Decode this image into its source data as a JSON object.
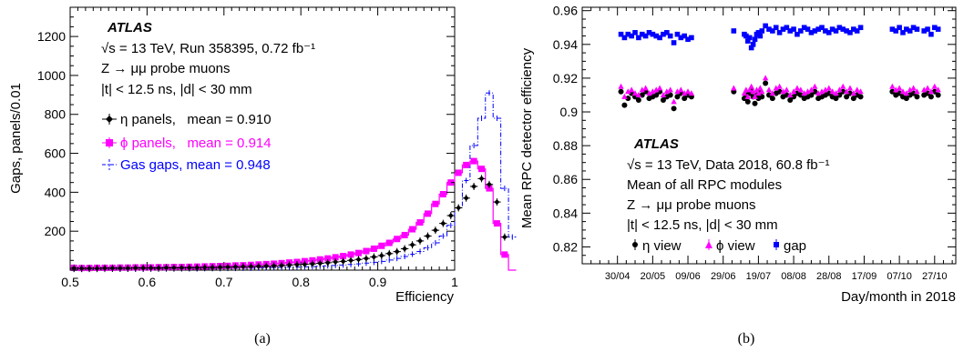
{
  "chart_data": [
    {
      "id": "a",
      "type": "histogram",
      "caption": "(a)",
      "xlabel": "Efficiency",
      "ylabel": "Gaps, panels/0.01",
      "xlim": [
        0.5,
        1.0
      ],
      "ylim": [
        0,
        1350
      ],
      "xticks": [
        "0.5",
        "0.6",
        "0.7",
        "0.8",
        "0.9",
        "1"
      ],
      "yticks": [
        "200",
        "400",
        "600",
        "800",
        "1000",
        "1200"
      ],
      "ytick_values": [
        200,
        400,
        600,
        800,
        1000,
        1200
      ],
      "bin_width": 0.01,
      "bin_start": 0.5,
      "annotations": {
        "experiment": "ATLAS",
        "line1": "√s = 13 TeV, Run 358395, 0.72 fb⁻¹",
        "line2": "Z → μμ probe muons",
        "line3": "|t| < 12.5 ns, |d| < 30 mm"
      },
      "series": [
        {
          "name": "η panels,   mean = 0.910",
          "color": "#000000",
          "style": "markers",
          "values": [
            10,
            9,
            9,
            9,
            10,
            10,
            10,
            10,
            11,
            11,
            11,
            11,
            12,
            12,
            12,
            13,
            13,
            14,
            14,
            15,
            16,
            17,
            18,
            19,
            20,
            21,
            22,
            24,
            26,
            28,
            30,
            32,
            35,
            38,
            42,
            45,
            50,
            55,
            60,
            68,
            75,
            85,
            95,
            110,
            130,
            150,
            175,
            205,
            240,
            280,
            320,
            370,
            430,
            470,
            440,
            350,
            170,
            0
          ]
        },
        {
          "name": "ϕ panels,   mean = 0.914",
          "color": "#ff00ff",
          "style": "markers",
          "values": [
            12,
            11,
            11,
            12,
            12,
            12,
            13,
            13,
            14,
            14,
            14,
            15,
            15,
            16,
            16,
            17,
            18,
            19,
            20,
            21,
            22,
            24,
            25,
            27,
            29,
            31,
            33,
            36,
            39,
            42,
            46,
            50,
            55,
            60,
            66,
            72,
            80,
            88,
            98,
            110,
            125,
            140,
            160,
            180,
            210,
            245,
            290,
            340,
            390,
            450,
            500,
            540,
            560,
            520,
            420,
            240,
            80,
            0
          ]
        },
        {
          "name": "Gas gaps, mean = 0.948",
          "color": "#0000ff",
          "style": "dashdot",
          "values": [
            4,
            4,
            4,
            4,
            4,
            5,
            5,
            5,
            5,
            5,
            6,
            6,
            6,
            6,
            7,
            7,
            7,
            8,
            8,
            8,
            9,
            9,
            10,
            10,
            11,
            12,
            13,
            14,
            15,
            16,
            17,
            18,
            20,
            22,
            24,
            26,
            29,
            32,
            36,
            40,
            45,
            52,
            60,
            70,
            82,
            96,
            115,
            140,
            175,
            230,
            320,
            460,
            640,
            780,
            910,
            780,
            420,
            170
          ]
        }
      ]
    },
    {
      "id": "b",
      "type": "scatter",
      "caption": "(b)",
      "xlabel": "Day/month in 2018",
      "ylabel": "Mean RPC detector efficiency",
      "ylim": [
        0.81,
        0.962
      ],
      "yticks": [
        "0.82",
        "0.84",
        "0.86",
        "0.88",
        "0.9",
        "0.92",
        "0.94",
        "0.96"
      ],
      "ytick_values": [
        0.82,
        0.84,
        0.86,
        0.88,
        0.9,
        0.92,
        0.94,
        0.96
      ],
      "xticks": [
        "30/04",
        "20/05",
        "09/06",
        "29/06",
        "19/07",
        "08/08",
        "28/08",
        "17/09",
        "07/10",
        "27/10"
      ],
      "xtick_days": [
        120,
        140,
        160,
        180,
        200,
        220,
        240,
        260,
        280,
        300
      ],
      "xlim_days": [
        100,
        312
      ],
      "annotations": {
        "experiment": "ATLAS",
        "line1": "√s = 13 TeV, Data 2018, 60.8 fb⁻¹",
        "line2": "Mean of all RPC modules",
        "line3": "Z → μμ probe muons",
        "line4": "|t| < 12.5 ns, |d| < 30 mm"
      },
      "legend": [
        "η view",
        "ϕ view",
        "gap"
      ],
      "day_of_year": [
        122,
        124,
        126,
        128,
        130,
        132,
        134,
        136,
        138,
        140,
        142,
        144,
        146,
        148,
        150,
        152,
        154,
        156,
        158,
        160,
        162,
        186,
        192,
        193,
        194,
        195,
        196,
        197,
        198,
        199,
        200,
        201,
        202,
        204,
        206,
        208,
        210,
        212,
        214,
        216,
        218,
        220,
        222,
        224,
        226,
        228,
        230,
        232,
        234,
        236,
        238,
        240,
        242,
        244,
        246,
        248,
        250,
        252,
        254,
        256,
        258,
        276,
        278,
        280,
        282,
        284,
        286,
        288,
        290,
        294,
        296,
        298,
        300,
        302
      ],
      "series": [
        {
          "name": "η view",
          "color": "#000000",
          "values": [
            0.912,
            0.904,
            0.908,
            0.911,
            0.909,
            0.907,
            0.91,
            0.912,
            0.908,
            0.909,
            0.91,
            0.912,
            0.907,
            0.909,
            0.91,
            0.902,
            0.909,
            0.911,
            0.908,
            0.91,
            0.909,
            0.912,
            0.908,
            0.91,
            0.906,
            0.911,
            0.913,
            0.909,
            0.905,
            0.91,
            0.908,
            0.912,
            0.909,
            0.917,
            0.91,
            0.908,
            0.911,
            0.912,
            0.909,
            0.91,
            0.907,
            0.909,
            0.911,
            0.91,
            0.908,
            0.909,
            0.91,
            0.912,
            0.908,
            0.909,
            0.91,
            0.911,
            0.909,
            0.908,
            0.91,
            0.912,
            0.909,
            0.911,
            0.908,
            0.91,
            0.909,
            0.912,
            0.91,
            0.911,
            0.909,
            0.908,
            0.91,
            0.911,
            0.909,
            0.91,
            0.911,
            0.909,
            0.912,
            0.91
          ]
        },
        {
          "name": "ϕ view",
          "color": "#ff00ff",
          "values": [
            0.915,
            0.909,
            0.912,
            0.913,
            0.911,
            0.91,
            0.913,
            0.914,
            0.911,
            0.912,
            0.913,
            0.914,
            0.91,
            0.912,
            0.913,
            0.906,
            0.912,
            0.913,
            0.911,
            0.912,
            0.911,
            0.914,
            0.911,
            0.913,
            0.909,
            0.913,
            0.915,
            0.912,
            0.909,
            0.913,
            0.911,
            0.914,
            0.912,
            0.92,
            0.913,
            0.911,
            0.914,
            0.915,
            0.912,
            0.913,
            0.91,
            0.912,
            0.914,
            0.913,
            0.911,
            0.912,
            0.913,
            0.915,
            0.911,
            0.912,
            0.913,
            0.914,
            0.912,
            0.911,
            0.913,
            0.915,
            0.912,
            0.914,
            0.911,
            0.913,
            0.912,
            0.915,
            0.913,
            0.914,
            0.912,
            0.911,
            0.913,
            0.914,
            0.912,
            0.913,
            0.914,
            0.912,
            0.915,
            0.913
          ]
        },
        {
          "name": "gap",
          "color": "#0000ff",
          "values": [
            0.946,
            0.944,
            0.946,
            0.945,
            0.947,
            0.944,
            0.946,
            0.945,
            0.947,
            0.946,
            0.945,
            0.944,
            0.946,
            0.947,
            0.945,
            0.941,
            0.946,
            0.944,
            0.945,
            0.943,
            0.944,
            0.948,
            0.946,
            0.945,
            0.942,
            0.944,
            0.938,
            0.94,
            0.943,
            0.946,
            0.947,
            0.945,
            0.948,
            0.951,
            0.949,
            0.948,
            0.95,
            0.947,
            0.949,
            0.95,
            0.948,
            0.949,
            0.946,
            0.948,
            0.95,
            0.949,
            0.947,
            0.948,
            0.949,
            0.95,
            0.948,
            0.947,
            0.949,
            0.948,
            0.95,
            0.949,
            0.948,
            0.947,
            0.949,
            0.948,
            0.95,
            0.949,
            0.948,
            0.95,
            0.947,
            0.949,
            0.948,
            0.95,
            0.949,
            0.948,
            0.949,
            0.946,
            0.95,
            0.949
          ]
        }
      ]
    }
  ]
}
